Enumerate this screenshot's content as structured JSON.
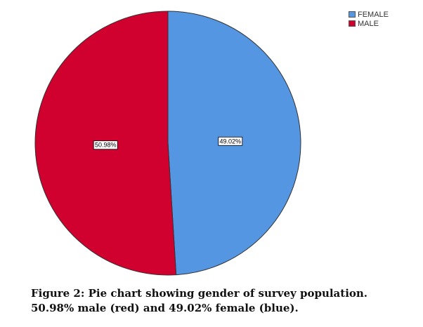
{
  "chart_data": {
    "type": "pie",
    "slices": [
      {
        "name": "FEMALE",
        "value": 49.02,
        "label": "49.02%",
        "color": "#5596e2"
      },
      {
        "name": "MALE",
        "value": 50.98,
        "label": "50.98%",
        "color": "#d0002f"
      }
    ],
    "legend": {
      "position": "top-right",
      "entries": [
        "FEMALE",
        "MALE"
      ]
    },
    "start_angle": "12 o'clock",
    "direction": "clockwise"
  },
  "caption": "Figure 2: Pie chart showing gender of survey population. 50.98% male (red) and 49.02% female (blue)."
}
